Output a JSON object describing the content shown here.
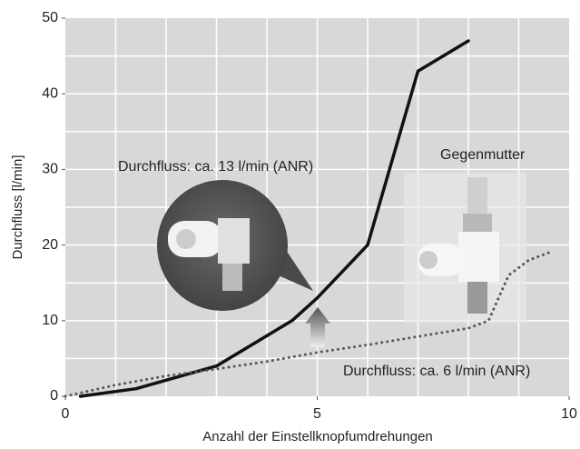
{
  "chart_data": {
    "type": "line",
    "x_label": "Anzahl der Einstellknopfumdrehungen",
    "y_label": "Durchfluss [l/min]",
    "xlim": [
      0,
      10
    ],
    "ylim": [
      0,
      50
    ],
    "xticks": [
      0,
      5,
      10
    ],
    "yticks": [
      0,
      10,
      20,
      30,
      40,
      50
    ],
    "x_grid_lines": [
      1,
      2,
      3,
      4,
      5,
      6,
      7,
      8,
      9
    ],
    "y_grid_lines": [
      5,
      10,
      15,
      20,
      25,
      30,
      35,
      40,
      45
    ],
    "grid": true,
    "series": [
      {
        "color": "#111111",
        "style": "solid",
        "x": [
          0.3,
          1.4,
          3,
          4.5,
          5,
          6,
          7,
          8
        ],
        "values": [
          0,
          1,
          4,
          10,
          13,
          20,
          43,
          47
        ]
      },
      {
        "color": "#555555",
        "style": "dotted",
        "x": [
          0,
          1,
          2,
          3,
          4,
          5,
          6,
          7,
          8,
          8.4,
          8.6,
          8.8,
          9.2,
          9.6
        ],
        "values": [
          0,
          1.5,
          2.7,
          3.6,
          4.6,
          5.8,
          6.8,
          7.9,
          9,
          10,
          13,
          16,
          18,
          19
        ]
      }
    ],
    "annotations": [
      "Durchfluss: ca. 13 l/min (ANR)",
      "Gegenmutter",
      "Durchfluss: ca. 6 l/min (ANR)"
    ]
  }
}
